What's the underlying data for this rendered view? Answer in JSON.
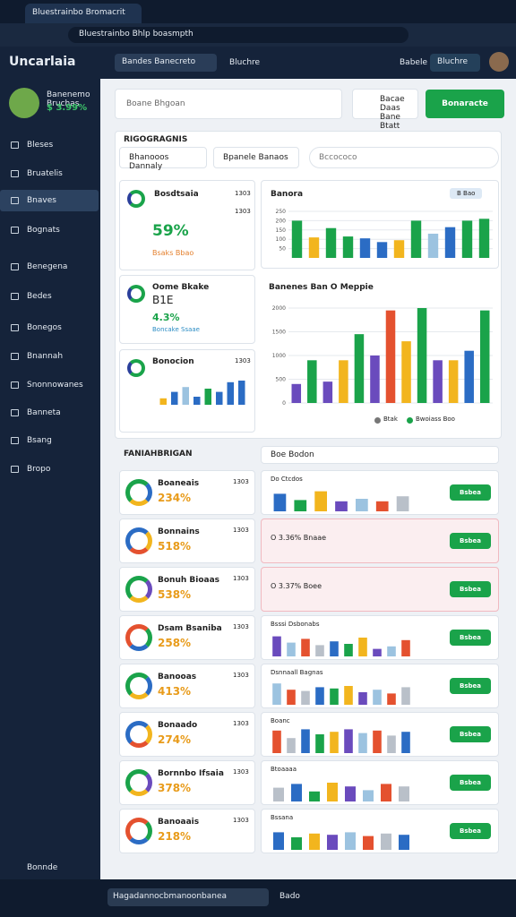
{
  "browser": {
    "tab": "Bluestrainbo Bromacrit",
    "url": "Bluestrainbo Bhlp boasmpth"
  },
  "header": {
    "logo": "Uncarlaia",
    "dropdown": "Bandes Banecreto",
    "link": "Bluchre",
    "user": "Babele",
    "badge": "Bluchre"
  },
  "sidebar": {
    "profile_name": "Banenemo Bruchas",
    "profile_stat": "$ 3.99%",
    "items": [
      "Bleses",
      "Bruatelis",
      "Bnaves",
      "Bognats",
      "Benegena",
      "Bedes",
      "Bonegos",
      "Bnannah",
      "Snonnowanes",
      "Banneta",
      "Bsang",
      "Bropo"
    ],
    "active": 2,
    "footer": "Bonnde"
  },
  "toolbar": {
    "search": "Boane Bhgoan",
    "card_line1": "Bacae Daas",
    "card_line2": "Bane Btatt",
    "button": "Bonaracte"
  },
  "overview": {
    "title": "RIGOGRAGNIS",
    "filter1": "Bhanooos Dannaly",
    "filter2": "Bpanele Banaos",
    "search": "Bccococo",
    "card1": {
      "title": "Bosdtsaia",
      "tag": "1303",
      "tag2": "1303",
      "value": "59%",
      "note": "Bsaks Bbao"
    },
    "card2": {
      "title": "Oome Bkake",
      "value": "B1E",
      "sub": "4.3%",
      "note": "Boncake Ssaae"
    },
    "card3": {
      "title": "Bonocion",
      "tag": "1303",
      "values": [
        20,
        40,
        55,
        25,
        50,
        40,
        70,
        75
      ],
      "colors": [
        "#f2b51e",
        "#2b6cc4",
        "#9cc3e0",
        "#2b6cc4",
        "#1aa34a",
        "#2b6cc4",
        "#2b6cc4",
        "#2b6cc4"
      ],
      "ylim": [
        0,
        100
      ]
    },
    "chart1": {
      "title": "Banora",
      "button": "B Bao",
      "values": [
        200,
        110,
        160,
        115,
        105,
        85,
        95,
        200,
        130,
        165,
        200,
        210
      ],
      "colors": [
        "#1aa34a",
        "#f2b51e",
        "#1aa34a",
        "#1aa34a",
        "#2b6cc4",
        "#2b6cc4",
        "#f2b51e",
        "#1aa34a",
        "#9cc3e0",
        "#2b6cc4",
        "#1aa34a",
        "#1aa34a"
      ],
      "ylim": [
        0,
        250
      ],
      "yticks": [
        50,
        100,
        150,
        200,
        250
      ]
    },
    "chart2": {
      "title": "Banenes Ban O Meppie",
      "values": [
        400,
        900,
        450,
        900,
        1450,
        1000,
        1950,
        1300,
        2000,
        900,
        900,
        1100,
        1950
      ],
      "colors": [
        "#6a4bbd",
        "#1aa34a",
        "#6a4bbd",
        "#f2b51e",
        "#1aa34a",
        "#6a4bbd",
        "#e4512f",
        "#f2b51e",
        "#1aa34a",
        "#6a4bbd",
        "#f2b51e",
        "#2b6cc4",
        "#1aa34a"
      ],
      "ylim": [
        0,
        2000
      ],
      "yticks": [
        0,
        500,
        1000,
        1500,
        2000
      ],
      "legend": [
        "Btak",
        "Bwoiass Boo"
      ]
    }
  },
  "list": {
    "title": "FANIAHBRIGAN",
    "action": "Boe Bodon",
    "rows": [
      {
        "title": "Boaneais",
        "value": "234%",
        "tag": "1303",
        "label": "Do Ctcdos",
        "values": [
          70,
          45,
          80,
          40,
          50,
          40,
          60
        ],
        "button": "Bsbea"
      },
      {
        "title": "Bonnains",
        "value": "518%",
        "tag": "1303",
        "label": "O 3.36%  Bnaae",
        "button": "Bsbea"
      },
      {
        "title": "Bonuh Bioaas",
        "value": "538%",
        "tag": "1303",
        "label": "O 3.37%  Boee",
        "button": "Bsbea"
      },
      {
        "title": "Dsam Bsaniba",
        "value": "258%",
        "tag": "1303",
        "label": "Bsssi Dsbonabs",
        "values": [
          80,
          55,
          70,
          45,
          60,
          50,
          75,
          30,
          40,
          65
        ],
        "button": "Bsbea"
      },
      {
        "title": "Banooas",
        "value": "413%",
        "tag": "1303",
        "label": "Dsnnaall Bagnas",
        "values": [
          85,
          60,
          55,
          70,
          65,
          75,
          50,
          60,
          45,
          70
        ],
        "button": "Bsbea"
      },
      {
        "title": "Bonaado",
        "value": "274%",
        "tag": "1303",
        "label": "Boanc",
        "values": [
          90,
          60,
          95,
          75,
          85,
          95,
          80,
          90,
          70,
          85
        ],
        "button": "Bsbea"
      },
      {
        "title": "Bornnbo Ifsaia",
        "value": "378%",
        "tag": "1303",
        "label": "Btoaaaa",
        "values": [
          55,
          70,
          40,
          75,
          60,
          45,
          70,
          60
        ],
        "button": "Bsbea"
      },
      {
        "title": "Banoaais",
        "value": "218%",
        "tag": "1303",
        "label": "Bssana",
        "values": [
          70,
          50,
          65,
          60,
          70,
          55,
          65,
          60
        ],
        "button": "Bsbea"
      }
    ]
  },
  "taskbar": {
    "search": "Hagadannocbmanoonbanea",
    "item": "Bado"
  }
}
